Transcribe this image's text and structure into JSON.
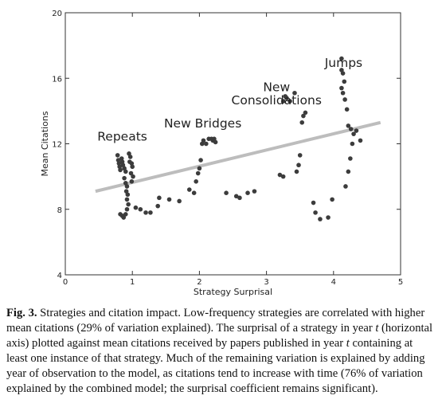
{
  "chart_data": {
    "type": "scatter",
    "xlabel": "Strategy Surprisal",
    "ylabel": "Mean Citations",
    "xlim": [
      0,
      5
    ],
    "ylim": [
      4,
      20
    ],
    "xticks": [
      0,
      1,
      2,
      3,
      4,
      5
    ],
    "yticks": [
      4,
      8,
      12,
      16,
      20
    ],
    "grid": false,
    "annotations": [
      {
        "text": "Repeats",
        "x": 0.85,
        "y": 12.2
      },
      {
        "text": "New Bridges",
        "x": 2.05,
        "y": 13.0
      },
      {
        "text": "New",
        "x": 3.15,
        "y": 15.2
      },
      {
        "text": "Consolidations",
        "x": 3.15,
        "y": 14.4
      },
      {
        "text": "Jumps",
        "x": 4.15,
        "y": 16.7
      }
    ],
    "trendline": {
      "x": [
        0.45,
        4.7
      ],
      "y": [
        9.1,
        13.3
      ]
    },
    "points": [
      [
        0.78,
        11.3
      ],
      [
        0.79,
        11.0
      ],
      [
        0.8,
        10.8
      ],
      [
        0.81,
        10.6
      ],
      [
        0.82,
        10.4
      ],
      [
        0.84,
        11.1
      ],
      [
        0.85,
        10.9
      ],
      [
        0.86,
        10.7
      ],
      [
        0.88,
        10.5
      ],
      [
        0.9,
        10.3
      ],
      [
        0.88,
        9.9
      ],
      [
        0.9,
        9.6
      ],
      [
        0.92,
        9.4
      ],
      [
        0.91,
        9.1
      ],
      [
        0.93,
        8.9
      ],
      [
        0.92,
        8.6
      ],
      [
        0.94,
        8.3
      ],
      [
        0.92,
        8.0
      ],
      [
        0.95,
        11.4
      ],
      [
        0.97,
        11.2
      ],
      [
        0.96,
        10.9
      ],
      [
        0.99,
        10.8
      ],
      [
        1.0,
        10.6
      ],
      [
        0.98,
        10.2
      ],
      [
        1.01,
        10.0
      ],
      [
        0.99,
        9.7
      ],
      [
        0.82,
        7.7
      ],
      [
        0.85,
        7.6
      ],
      [
        0.87,
        7.5
      ],
      [
        0.9,
        7.7
      ],
      [
        1.05,
        8.1
      ],
      [
        1.12,
        8.0
      ],
      [
        1.2,
        7.8
      ],
      [
        1.27,
        7.8
      ],
      [
        1.38,
        8.2
      ],
      [
        1.4,
        8.7
      ],
      [
        1.55,
        8.6
      ],
      [
        1.7,
        8.5
      ],
      [
        1.85,
        9.2
      ],
      [
        1.92,
        9.0
      ],
      [
        1.95,
        9.7
      ],
      [
        1.98,
        10.2
      ],
      [
        2.0,
        10.5
      ],
      [
        2.02,
        11.0
      ],
      [
        2.04,
        12.0
      ],
      [
        2.06,
        12.2
      ],
      [
        2.1,
        12.0
      ],
      [
        2.14,
        12.3
      ],
      [
        2.18,
        12.3
      ],
      [
        2.2,
        12.2
      ],
      [
        2.22,
        12.3
      ],
      [
        2.24,
        12.1
      ],
      [
        2.4,
        9.0
      ],
      [
        2.55,
        8.8
      ],
      [
        2.6,
        8.7
      ],
      [
        2.72,
        9.0
      ],
      [
        2.82,
        9.1
      ],
      [
        3.2,
        10.1
      ],
      [
        3.25,
        10.0
      ],
      [
        3.25,
        14.6
      ],
      [
        3.28,
        14.9
      ],
      [
        3.3,
        14.8
      ],
      [
        3.35,
        14.6
      ],
      [
        3.42,
        15.1
      ],
      [
        3.45,
        10.3
      ],
      [
        3.48,
        10.7
      ],
      [
        3.5,
        11.3
      ],
      [
        3.53,
        13.3
      ],
      [
        3.55,
        13.7
      ],
      [
        3.58,
        13.9
      ],
      [
        3.7,
        8.4
      ],
      [
        3.73,
        7.8
      ],
      [
        3.8,
        7.4
      ],
      [
        3.92,
        7.5
      ],
      [
        3.98,
        8.6
      ],
      [
        4.12,
        17.2
      ],
      [
        4.12,
        16.5
      ],
      [
        4.14,
        16.3
      ],
      [
        4.16,
        15.8
      ],
      [
        4.12,
        15.4
      ],
      [
        4.14,
        15.1
      ],
      [
        4.17,
        14.7
      ],
      [
        4.2,
        14.1
      ],
      [
        4.22,
        13.1
      ],
      [
        4.26,
        12.9
      ],
      [
        4.3,
        12.6
      ],
      [
        4.34,
        12.8
      ],
      [
        4.4,
        12.2
      ],
      [
        4.18,
        9.4
      ],
      [
        4.22,
        10.3
      ],
      [
        4.25,
        11.1
      ],
      [
        4.28,
        12.0
      ]
    ]
  },
  "caption": {
    "label": "Fig. 3.",
    "part1": " Strategies and citation impact. Low-frequency strategies are correlated with higher mean citations (29% of variation explained). The surprisal of a strategy in year ",
    "t1": "t",
    "part2": " (horizontal axis) plotted against mean citations received by papers published in year ",
    "t2": "t",
    "part3": " containing at least one instance of that strategy. Much of the remaining variation is explained by adding year of observation to the model, as citations tend to increase with time (76% of variation explained by the combined model; the surprisal coefficient remains significant)."
  }
}
